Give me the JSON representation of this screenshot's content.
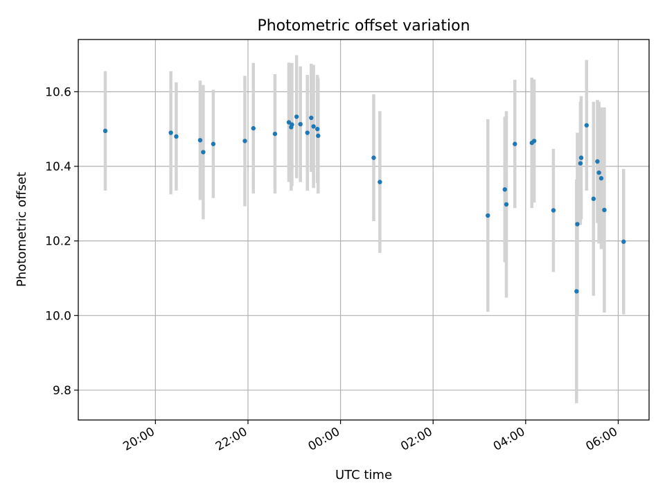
{
  "chart_data": {
    "type": "scatter",
    "title": "Photometric offset variation",
    "xlabel": "UTC time",
    "ylabel": "Photometric offset",
    "grid": true,
    "x_axis": {
      "kind": "time",
      "unit": "hours UTC",
      "range": [
        "18:20",
        "06:40"
      ],
      "ticks": [
        "20:00",
        "22:00",
        "00:00",
        "02:00",
        "04:00",
        "06:00"
      ]
    },
    "y_axis": {
      "range": [
        9.72,
        10.74
      ],
      "ticks": [
        "9.8",
        "10.0",
        "10.2",
        "10.4",
        "10.6"
      ]
    },
    "colors": {
      "points": "#1f77b4",
      "error_bars": "#d3d3d3",
      "grid": "#b0b0b0"
    },
    "points": [
      {
        "time": "18:55",
        "y": 10.495,
        "err": 0.16
      },
      {
        "time": "20:20",
        "y": 10.49,
        "err": 0.165
      },
      {
        "time": "20:27",
        "y": 10.48,
        "err": 0.145
      },
      {
        "time": "20:58",
        "y": 10.47,
        "err": 0.16
      },
      {
        "time": "21:02",
        "y": 10.438,
        "err": 0.18
      },
      {
        "time": "21:15",
        "y": 10.46,
        "err": 0.145
      },
      {
        "time": "21:56",
        "y": 10.468,
        "err": 0.175
      },
      {
        "time": "22:07",
        "y": 10.502,
        "err": 0.175
      },
      {
        "time": "22:35",
        "y": 10.487,
        "err": 0.16
      },
      {
        "time": "22:53",
        "y": 10.518,
        "err": 0.16
      },
      {
        "time": "22:56",
        "y": 10.505,
        "err": 0.17
      },
      {
        "time": "22:57",
        "y": 10.512,
        "err": 0.165
      },
      {
        "time": "23:03",
        "y": 10.533,
        "err": 0.165
      },
      {
        "time": "23:08",
        "y": 10.513,
        "err": 0.155
      },
      {
        "time": "23:17",
        "y": 10.49,
        "err": 0.155
      },
      {
        "time": "23:22",
        "y": 10.53,
        "err": 0.145
      },
      {
        "time": "23:25",
        "y": 10.507,
        "err": 0.165
      },
      {
        "time": "23:30",
        "y": 10.5,
        "err": 0.145
      },
      {
        "time": "23:31",
        "y": 10.482,
        "err": 0.155
      },
      {
        "time": "00:43",
        "y": 10.423,
        "err": 0.17
      },
      {
        "time": "00:51",
        "y": 10.358,
        "err": 0.19
      },
      {
        "time": "03:11",
        "y": 10.268,
        "err": 0.258
      },
      {
        "time": "03:33",
        "y": 10.338,
        "err": 0.195
      },
      {
        "time": "03:35",
        "y": 10.298,
        "err": 0.25
      },
      {
        "time": "03:46",
        "y": 10.46,
        "err": 0.172
      },
      {
        "time": "04:08",
        "y": 10.463,
        "err": 0.175
      },
      {
        "time": "04:11",
        "y": 10.468,
        "err": 0.165
      },
      {
        "time": "04:36",
        "y": 10.282,
        "err": 0.165
      },
      {
        "time": "05:06",
        "y": 10.065,
        "err": 0.3
      },
      {
        "time": "05:07",
        "y": 10.245,
        "err": 0.245
      },
      {
        "time": "05:11",
        "y": 10.408,
        "err": 0.165
      },
      {
        "time": "05:12",
        "y": 10.423,
        "err": 0.165
      },
      {
        "time": "05:19",
        "y": 10.51,
        "err": 0.175
      },
      {
        "time": "05:28",
        "y": 10.313,
        "err": 0.26
      },
      {
        "time": "05:33",
        "y": 10.413,
        "err": 0.165
      },
      {
        "time": "05:35",
        "y": 10.383,
        "err": 0.19
      },
      {
        "time": "05:38",
        "y": 10.368,
        "err": 0.19
      },
      {
        "time": "05:42",
        "y": 10.283,
        "err": 0.275
      },
      {
        "time": "06:07",
        "y": 10.198,
        "err": 0.195
      }
    ]
  }
}
